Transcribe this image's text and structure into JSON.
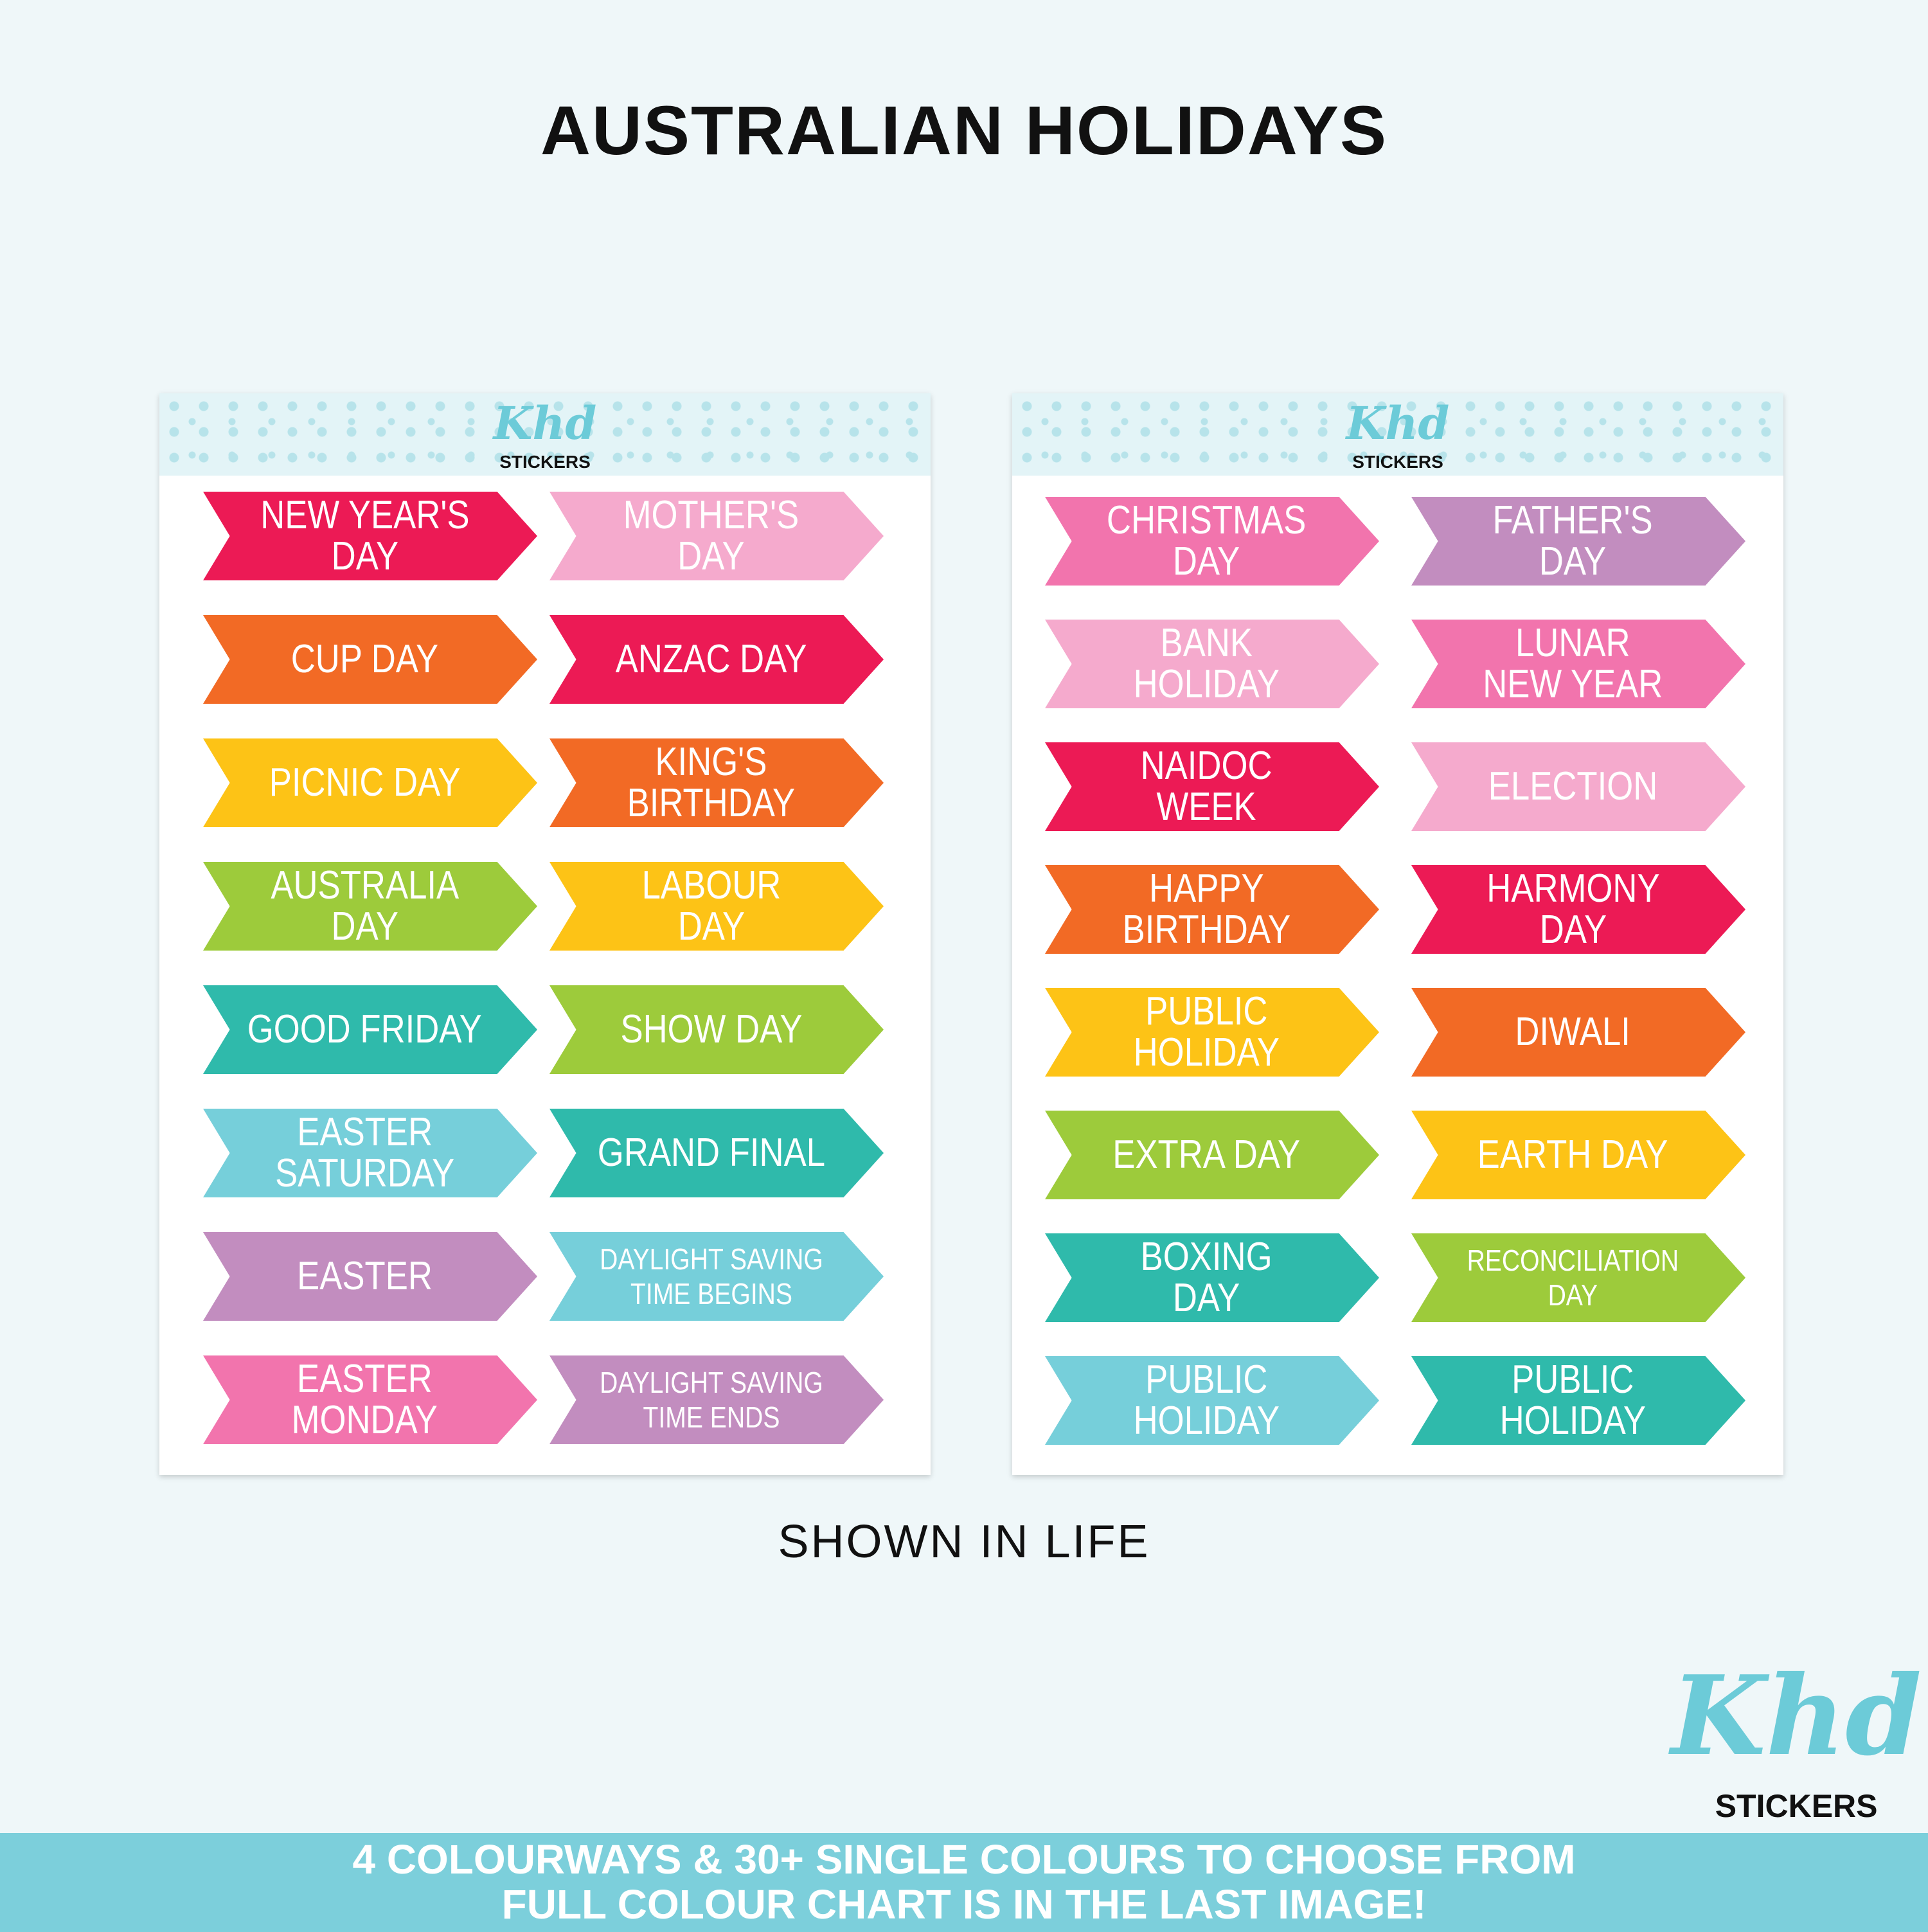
{
  "title": "AUSTRALIAN HOLIDAYS",
  "brand": {
    "script": "Khd",
    "word": "STICKERS"
  },
  "colors": {
    "red": "#ec1a55",
    "light_pink": "#f5aacd",
    "orange": "#f26a25",
    "yellow": "#fdc316",
    "green": "#9dcb3b",
    "teal": "#2fbaab",
    "light_blue": "#76cfda",
    "purple": "#c28dbf",
    "hot_pink": "#f274ad",
    "banner": "#7ccfdb"
  },
  "sheets": [
    {
      "stickers": [
        {
          "label": "NEW YEAR'S\nDAY",
          "color": "red"
        },
        {
          "label": "MOTHER'S\nDAY",
          "color": "light_pink"
        },
        {
          "label": "CUP DAY",
          "color": "orange"
        },
        {
          "label": "ANZAC DAY",
          "color": "red"
        },
        {
          "label": "PICNIC DAY",
          "color": "yellow"
        },
        {
          "label": "KING'S\nBIRTHDAY",
          "color": "orange"
        },
        {
          "label": "AUSTRALIA\nDAY",
          "color": "green"
        },
        {
          "label": "LABOUR\nDAY",
          "color": "yellow"
        },
        {
          "label": "GOOD FRIDAY",
          "color": "teal"
        },
        {
          "label": "SHOW DAY",
          "color": "green"
        },
        {
          "label": "EASTER\nSATURDAY",
          "color": "light_blue"
        },
        {
          "label": "GRAND FINAL",
          "color": "teal"
        },
        {
          "label": "EASTER",
          "color": "purple"
        },
        {
          "label": "DAYLIGHT SAVING\nTIME BEGINS",
          "color": "light_blue",
          "small": true
        },
        {
          "label": "EASTER\nMONDAY",
          "color": "hot_pink"
        },
        {
          "label": "DAYLIGHT SAVING\nTIME ENDS",
          "color": "purple",
          "small": true
        }
      ]
    },
    {
      "stickers": [
        {
          "label": "CHRISTMAS\nDAY",
          "color": "hot_pink"
        },
        {
          "label": "FATHER'S\nDAY",
          "color": "purple"
        },
        {
          "label": "BANK\nHOLIDAY",
          "color": "light_pink"
        },
        {
          "label": "LUNAR\nNEW YEAR",
          "color": "hot_pink"
        },
        {
          "label": "NAIDOC\nWEEK",
          "color": "red"
        },
        {
          "label": "ELECTION",
          "color": "light_pink"
        },
        {
          "label": "HAPPY\nBIRTHDAY",
          "color": "orange"
        },
        {
          "label": "HARMONY\nDAY",
          "color": "red"
        },
        {
          "label": "PUBLIC\nHOLIDAY",
          "color": "yellow"
        },
        {
          "label": "DIWALI",
          "color": "orange"
        },
        {
          "label": "EXTRA DAY",
          "color": "green"
        },
        {
          "label": "EARTH DAY",
          "color": "yellow"
        },
        {
          "label": "BOXING\nDAY",
          "color": "teal"
        },
        {
          "label": "RECONCILIATION\nDAY",
          "color": "green",
          "small": true
        },
        {
          "label": "PUBLIC\nHOLIDAY",
          "color": "light_blue"
        },
        {
          "label": "PUBLIC\nHOLIDAY",
          "color": "teal"
        }
      ]
    }
  ],
  "caption": "SHOWN IN LIFE",
  "banner": {
    "line1": "4 COLOURWAYS & 30+ SINGLE COLOURS TO CHOOSE FROM",
    "line2": "FULL COLOUR CHART IS IN THE LAST IMAGE!"
  }
}
